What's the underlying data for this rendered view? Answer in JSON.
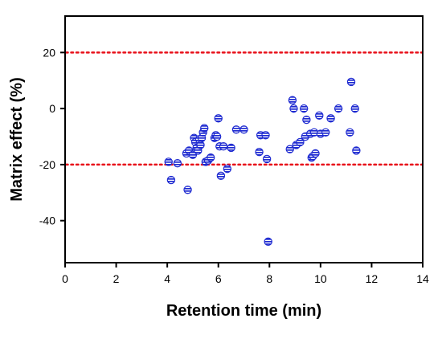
{
  "chart_data": {
    "type": "scatter",
    "title": "",
    "xlabel": "Retention time (min)",
    "ylabel": "Matrix effect (%)",
    "xlim": [
      0,
      14
    ],
    "ylim": [
      -55,
      33
    ],
    "xticks": [
      0,
      2,
      4,
      6,
      8,
      10,
      12,
      14
    ],
    "yticks": [
      -40,
      -20,
      0,
      20
    ],
    "xtick_labels": [
      "0",
      "2",
      "4",
      "6",
      "8",
      "10",
      "12",
      "14"
    ],
    "ytick_labels": [
      "-40",
      "-20",
      "0",
      "20"
    ],
    "grid": false,
    "legend": "none",
    "reference_lines": [
      {
        "y": 20,
        "style": "dotted",
        "color": "#e8101a"
      },
      {
        "y": -20,
        "style": "dotted",
        "color": "#e8101a"
      }
    ],
    "marker": {
      "shape": "circle-hatched",
      "color": "#1f2bd1"
    },
    "points": [
      {
        "x": 4.05,
        "y": -19
      },
      {
        "x": 4.15,
        "y": -25.5
      },
      {
        "x": 4.4,
        "y": -19.5
      },
      {
        "x": 4.75,
        "y": -16
      },
      {
        "x": 4.8,
        "y": -29
      },
      {
        "x": 4.85,
        "y": -15
      },
      {
        "x": 5.0,
        "y": -16.5
      },
      {
        "x": 5.05,
        "y": -10.5
      },
      {
        "x": 5.1,
        "y": -12
      },
      {
        "x": 5.15,
        "y": -14
      },
      {
        "x": 5.2,
        "y": -15
      },
      {
        "x": 5.25,
        "y": -11
      },
      {
        "x": 5.3,
        "y": -13
      },
      {
        "x": 5.35,
        "y": -10.5
      },
      {
        "x": 5.4,
        "y": -8.5
      },
      {
        "x": 5.45,
        "y": -7
      },
      {
        "x": 5.5,
        "y": -19
      },
      {
        "x": 5.6,
        "y": -18.5
      },
      {
        "x": 5.7,
        "y": -17.5
      },
      {
        "x": 5.85,
        "y": -10.5
      },
      {
        "x": 5.9,
        "y": -9.5
      },
      {
        "x": 5.95,
        "y": -10
      },
      {
        "x": 6.0,
        "y": -3.5
      },
      {
        "x": 6.05,
        "y": -13.5
      },
      {
        "x": 6.1,
        "y": -24
      },
      {
        "x": 6.2,
        "y": -13.5
      },
      {
        "x": 6.35,
        "y": -21.5
      },
      {
        "x": 6.5,
        "y": -14
      },
      {
        "x": 6.7,
        "y": -7.5
      },
      {
        "x": 7.0,
        "y": -7.5
      },
      {
        "x": 7.6,
        "y": -15.5
      },
      {
        "x": 7.65,
        "y": -9.5
      },
      {
        "x": 7.85,
        "y": -9.5
      },
      {
        "x": 7.9,
        "y": -18
      },
      {
        "x": 7.95,
        "y": -47.5
      },
      {
        "x": 8.8,
        "y": -14.5
      },
      {
        "x": 8.9,
        "y": 3
      },
      {
        "x": 8.95,
        "y": 0
      },
      {
        "x": 9.05,
        "y": -13
      },
      {
        "x": 9.2,
        "y": -12
      },
      {
        "x": 9.35,
        "y": 0
      },
      {
        "x": 9.4,
        "y": -10
      },
      {
        "x": 9.45,
        "y": -4
      },
      {
        "x": 9.6,
        "y": -9
      },
      {
        "x": 9.65,
        "y": -17.5
      },
      {
        "x": 9.7,
        "y": -17
      },
      {
        "x": 9.75,
        "y": -8.5
      },
      {
        "x": 9.8,
        "y": -16
      },
      {
        "x": 9.95,
        "y": -2.5
      },
      {
        "x": 10.0,
        "y": -9
      },
      {
        "x": 10.2,
        "y": -8.5
      },
      {
        "x": 10.4,
        "y": -3.5
      },
      {
        "x": 10.7,
        "y": 0
      },
      {
        "x": 11.15,
        "y": -8.5
      },
      {
        "x": 11.2,
        "y": 9.5
      },
      {
        "x": 11.35,
        "y": 0
      },
      {
        "x": 11.4,
        "y": -15
      }
    ]
  }
}
